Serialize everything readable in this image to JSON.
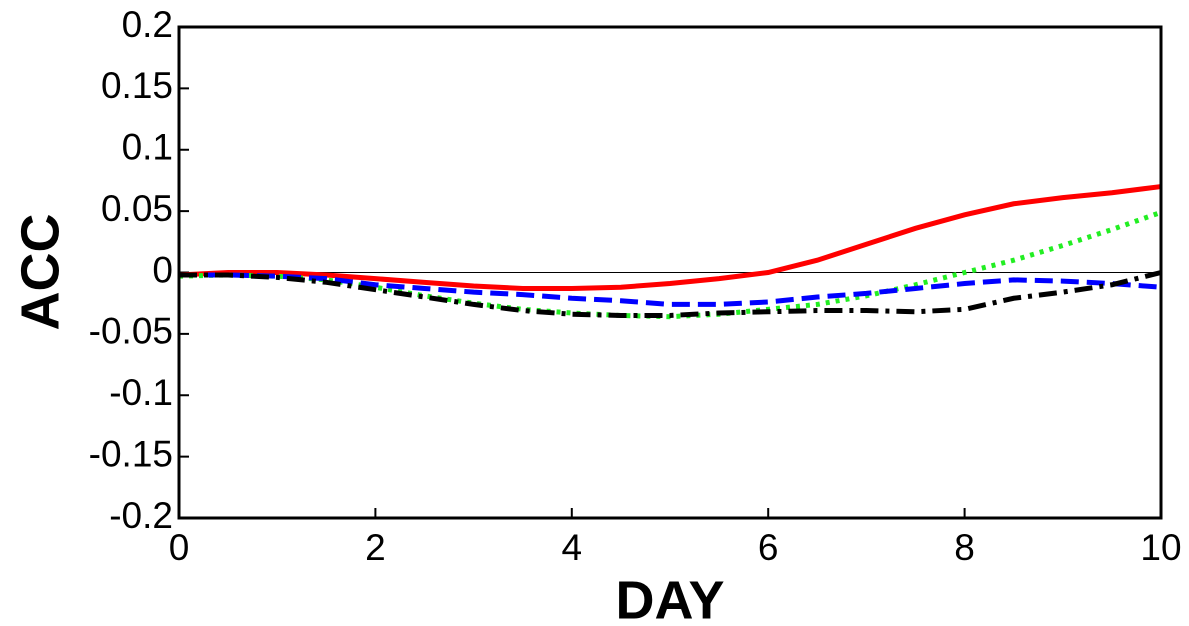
{
  "chart_data": {
    "type": "line",
    "x_label": "DAY",
    "y_label": "ACC",
    "x": [
      0,
      0.5,
      1,
      1.5,
      2,
      2.5,
      3,
      3.5,
      4,
      4.5,
      5,
      5.5,
      6,
      6.5,
      7,
      7.5,
      8,
      8.5,
      9,
      9.5,
      10
    ],
    "series": [
      {
        "color": "#ff0000",
        "dash": "solid",
        "values": [
          -0.002,
          0,
          0,
          -0.002,
          -0.005,
          -0.008,
          -0.011,
          -0.013,
          -0.013,
          -0.012,
          -0.009,
          -0.005,
          0,
          0.01,
          0.023,
          0.036,
          0.047,
          0.056,
          0.061,
          0.065,
          0.07
        ]
      },
      {
        "color": "#22ee22",
        "dash": "dotted",
        "values": [
          -0.003,
          -0.002,
          -0.003,
          -0.006,
          -0.012,
          -0.019,
          -0.025,
          -0.03,
          -0.033,
          -0.035,
          -0.036,
          -0.034,
          -0.03,
          -0.026,
          -0.019,
          -0.01,
          0,
          0.01,
          0.022,
          0.035,
          0.049
        ]
      },
      {
        "color": "#0000ff",
        "dash": "dashed",
        "values": [
          -0.002,
          -0.002,
          -0.003,
          -0.005,
          -0.01,
          -0.013,
          -0.016,
          -0.018,
          -0.021,
          -0.023,
          -0.026,
          -0.026,
          -0.024,
          -0.02,
          -0.017,
          -0.013,
          -0.009,
          -0.006,
          -0.007,
          -0.009,
          -0.012
        ]
      },
      {
        "color": "#000000",
        "dash": "dashdot",
        "values": [
          -0.002,
          -0.002,
          -0.004,
          -0.008,
          -0.014,
          -0.02,
          -0.026,
          -0.031,
          -0.034,
          -0.035,
          -0.035,
          -0.033,
          -0.032,
          -0.031,
          -0.031,
          -0.032,
          -0.03,
          -0.021,
          -0.016,
          -0.01,
          0
        ]
      }
    ],
    "xlim": [
      0,
      10
    ],
    "xticks": [
      0,
      2,
      4,
      6,
      8,
      10
    ],
    "ylim": [
      -0.2,
      0.2
    ],
    "yticks": [
      0.2,
      0.15,
      0.1,
      0.05,
      0,
      -0.05,
      -0.1,
      -0.15,
      -0.2
    ],
    "grid": false
  }
}
